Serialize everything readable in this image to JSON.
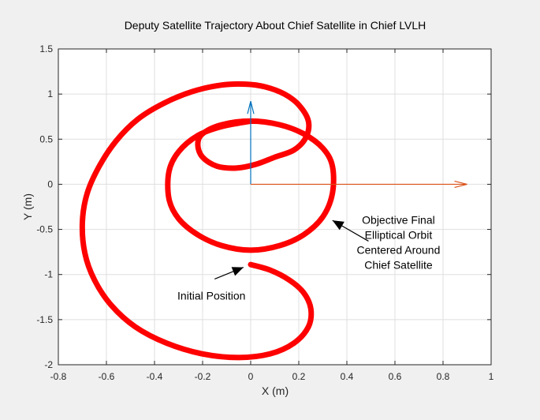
{
  "chart_data": {
    "type": "line",
    "title": "Deputy Satellite Trajectory About Chief Satellite in Chief LVLH",
    "xlabel": "X (m)",
    "ylabel": "Y (m)",
    "xlim": [
      -0.8,
      1
    ],
    "ylim": [
      -2,
      1.5
    ],
    "x_ticks": [
      -0.8,
      -0.6,
      -0.4,
      -0.2,
      0,
      0.2,
      0.4,
      0.6,
      0.8,
      1
    ],
    "y_ticks": [
      -2,
      -1.5,
      -1,
      -0.5,
      0,
      0.5,
      1,
      1.5
    ],
    "x_tick_labels": [
      "-0.8",
      "-0.6",
      "-0.4",
      "-0.2",
      "0",
      "0.2",
      "0.4",
      "0.6",
      "0.8",
      "1"
    ],
    "y_tick_labels": [
      "-2",
      "-1.5",
      "-1",
      "-0.5",
      "0",
      "0.5",
      "1",
      "1.5"
    ],
    "grid": true,
    "series": [
      {
        "color": "#ff0000",
        "style": "thick",
        "x": [
          0.0,
          0.08,
          0.16,
          0.22,
          0.25,
          0.24,
          0.18,
          0.08,
          -0.05,
          -0.2,
          -0.35,
          -0.48,
          -0.58,
          -0.65,
          -0.69,
          -0.7,
          -0.68,
          -0.63,
          -0.56,
          -0.47,
          -0.36,
          -0.24,
          -0.12,
          -0.02,
          0.06,
          0.14,
          0.2,
          0.24,
          0.23,
          0.18,
          0.1,
          0.02,
          -0.06,
          -0.14,
          -0.2,
          -0.22,
          -0.2,
          -0.12,
          0.0,
          0.12,
          0.22,
          0.3,
          0.34,
          0.34,
          0.3,
          0.22,
          0.12,
          0.0,
          -0.12,
          -0.22,
          -0.3,
          -0.34,
          -0.34,
          -0.3,
          -0.22,
          -0.12,
          0.0
        ],
        "y": [
          -0.89,
          -0.95,
          -1.06,
          -1.2,
          -1.38,
          -1.58,
          -1.76,
          -1.88,
          -1.92,
          -1.88,
          -1.76,
          -1.58,
          -1.34,
          -1.06,
          -0.76,
          -0.42,
          -0.1,
          0.2,
          0.48,
          0.72,
          0.9,
          1.03,
          1.1,
          1.11,
          1.08,
          1.0,
          0.88,
          0.7,
          0.52,
          0.38,
          0.3,
          0.22,
          0.18,
          0.2,
          0.3,
          0.44,
          0.56,
          0.66,
          0.7,
          0.66,
          0.56,
          0.4,
          0.2,
          -0.1,
          -0.36,
          -0.56,
          -0.68,
          -0.73,
          -0.68,
          -0.56,
          -0.38,
          -0.16,
          0.14,
          0.36,
          0.54,
          0.64,
          0.7
        ]
      }
    ],
    "vectors": [
      {
        "from": [
          0,
          0
        ],
        "to": [
          0,
          0.92
        ],
        "color": "#0072bd"
      },
      {
        "from": [
          0,
          0
        ],
        "to": [
          0.9,
          0
        ],
        "color": "#d95319"
      }
    ],
    "annotations": [
      {
        "id": "objective",
        "lines": [
          "Objective Final",
          "Elliptical Orbit",
          "Centered Around",
          "Chief Satellite"
        ],
        "arrow_tip": [
          0.34,
          -0.4
        ],
        "arrow_tail": [
          0.49,
          -0.63
        ]
      },
      {
        "id": "initial",
        "lines": [
          "Initial Position"
        ],
        "arrow_tip": [
          -0.03,
          -0.92
        ],
        "arrow_tail": [
          -0.15,
          -1.05
        ]
      }
    ]
  }
}
